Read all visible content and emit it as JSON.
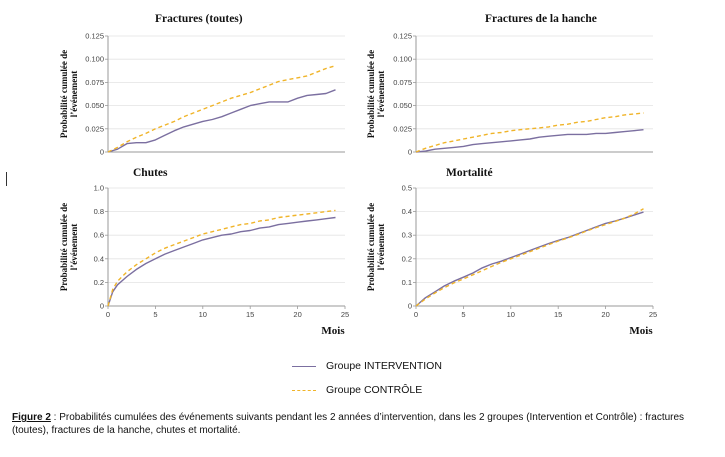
{
  "legend": {
    "intervention": "Groupe INTERVENTION",
    "controle": "Groupe CONTRÔLE"
  },
  "caption": {
    "label": "Figure 2",
    "text": " : Probabilités cumulées des événements suivants pendant les 2 années d’intervention, dans les 2 groupes (Intervention et Contrôle) : fractures (toutes), fractures de la hanche, chutes et mortalité."
  },
  "colors": {
    "intervention": "#7b6fa0",
    "controle": "#f0b429",
    "axis": "#9a9a9a"
  },
  "chart_data": [
    {
      "type": "line",
      "title": "Fractures (toutes)",
      "ylabel": "Probabilité cumulée de l'événement",
      "xlabel": "",
      "xlim": [
        0,
        25
      ],
      "ylim": [
        0,
        0.125
      ],
      "yticks": [
        "0",
        "0.025",
        "0.050",
        "0.075",
        "0.100",
        "0.125"
      ],
      "xticks": [],
      "x": [
        0,
        1,
        2,
        3,
        4,
        5,
        6,
        7,
        8,
        9,
        10,
        11,
        12,
        13,
        14,
        15,
        16,
        17,
        18,
        19,
        20,
        21,
        22,
        23,
        24
      ],
      "series": [
        {
          "name": "Groupe INTERVENTION",
          "style": "solid",
          "values": [
            0,
            0.003,
            0.009,
            0.01,
            0.01,
            0.013,
            0.018,
            0.023,
            0.027,
            0.03,
            0.033,
            0.035,
            0.038,
            0.042,
            0.046,
            0.05,
            0.052,
            0.054,
            0.054,
            0.054,
            0.058,
            0.061,
            0.062,
            0.063,
            0.067
          ]
        },
        {
          "name": "Groupe CONTRÔLE",
          "style": "dashed",
          "values": [
            0,
            0.005,
            0.011,
            0.016,
            0.02,
            0.025,
            0.029,
            0.033,
            0.038,
            0.042,
            0.046,
            0.05,
            0.054,
            0.058,
            0.061,
            0.064,
            0.068,
            0.072,
            0.076,
            0.078,
            0.08,
            0.082,
            0.086,
            0.09,
            0.093
          ]
        }
      ]
    },
    {
      "type": "line",
      "title": "Fractures de la hanche",
      "ylabel": "Probabilité cumulée de l'événement",
      "xlabel": "",
      "xlim": [
        0,
        25
      ],
      "ylim": [
        0,
        0.125
      ],
      "yticks": [
        "0",
        "0.025",
        "0.050",
        "0.075",
        "0.100",
        "0.125"
      ],
      "xticks": [],
      "x": [
        0,
        1,
        2,
        3,
        4,
        5,
        6,
        7,
        8,
        9,
        10,
        11,
        12,
        13,
        14,
        15,
        16,
        17,
        18,
        19,
        20,
        21,
        22,
        23,
        24
      ],
      "series": [
        {
          "name": "Groupe INTERVENTION",
          "style": "solid",
          "values": [
            0,
            0.001,
            0.003,
            0.004,
            0.005,
            0.006,
            0.008,
            0.009,
            0.01,
            0.011,
            0.012,
            0.013,
            0.014,
            0.016,
            0.017,
            0.018,
            0.019,
            0.019,
            0.019,
            0.02,
            0.02,
            0.021,
            0.022,
            0.023,
            0.024
          ]
        },
        {
          "name": "Groupe CONTRÔLE",
          "style": "dashed",
          "values": [
            0,
            0.004,
            0.007,
            0.01,
            0.012,
            0.014,
            0.016,
            0.018,
            0.02,
            0.021,
            0.023,
            0.024,
            0.025,
            0.026,
            0.027,
            0.029,
            0.03,
            0.032,
            0.033,
            0.035,
            0.037,
            0.038,
            0.04,
            0.041,
            0.042
          ]
        }
      ]
    },
    {
      "type": "line",
      "title": "Chutes",
      "ylabel": "Probabilité cumulée de l'événement",
      "xlabel": "Mois",
      "xlim": [
        0,
        25
      ],
      "ylim": [
        0,
        1.0
      ],
      "yticks": [
        "0",
        "0.2",
        "0.4",
        "0.6",
        "0.8",
        "1.0"
      ],
      "xticks": [
        "0",
        "5",
        "10",
        "15",
        "20",
        "25"
      ],
      "x": [
        0,
        0.5,
        1,
        2,
        3,
        4,
        5,
        6,
        7,
        8,
        9,
        10,
        11,
        12,
        13,
        14,
        15,
        16,
        17,
        18,
        19,
        20,
        21,
        22,
        23,
        24
      ],
      "series": [
        {
          "name": "Groupe INTERVENTION",
          "style": "solid",
          "values": [
            0,
            0.12,
            0.18,
            0.25,
            0.31,
            0.36,
            0.4,
            0.44,
            0.47,
            0.5,
            0.53,
            0.56,
            0.58,
            0.6,
            0.61,
            0.63,
            0.64,
            0.66,
            0.67,
            0.69,
            0.7,
            0.71,
            0.72,
            0.73,
            0.74,
            0.75
          ]
        },
        {
          "name": "Groupe CONTRÔLE",
          "style": "dashed",
          "values": [
            0,
            0.14,
            0.21,
            0.29,
            0.35,
            0.4,
            0.45,
            0.49,
            0.52,
            0.55,
            0.58,
            0.61,
            0.63,
            0.65,
            0.67,
            0.69,
            0.7,
            0.72,
            0.73,
            0.75,
            0.76,
            0.77,
            0.78,
            0.79,
            0.8,
            0.81
          ]
        }
      ]
    },
    {
      "type": "line",
      "title": "Mortalité",
      "ylabel": "Probabilité cumulée de l'événement",
      "xlabel": "Mois",
      "xlim": [
        0,
        25
      ],
      "ylim": [
        0,
        0.5
      ],
      "yticks": [
        "0",
        "0.1",
        "0.2",
        "0.3",
        "0.4",
        "0.5"
      ],
      "xticks": [
        "0",
        "5",
        "10",
        "15",
        "20",
        "25"
      ],
      "x": [
        0,
        1,
        2,
        3,
        4,
        5,
        6,
        7,
        8,
        9,
        10,
        11,
        12,
        13,
        14,
        15,
        16,
        17,
        18,
        19,
        20,
        21,
        22,
        23,
        24
      ],
      "series": [
        {
          "name": "Groupe INTERVENTION",
          "style": "solid",
          "values": [
            0,
            0.035,
            0.06,
            0.085,
            0.105,
            0.122,
            0.14,
            0.162,
            0.178,
            0.19,
            0.205,
            0.22,
            0.235,
            0.25,
            0.265,
            0.278,
            0.29,
            0.305,
            0.32,
            0.335,
            0.35,
            0.36,
            0.372,
            0.385,
            0.398
          ]
        },
        {
          "name": "Groupe CONTRÔLE",
          "style": "dashed",
          "values": [
            0,
            0.03,
            0.055,
            0.078,
            0.098,
            0.115,
            0.132,
            0.15,
            0.168,
            0.185,
            0.2,
            0.215,
            0.23,
            0.245,
            0.26,
            0.275,
            0.288,
            0.302,
            0.318,
            0.332,
            0.345,
            0.358,
            0.372,
            0.39,
            0.412
          ]
        }
      ]
    }
  ]
}
